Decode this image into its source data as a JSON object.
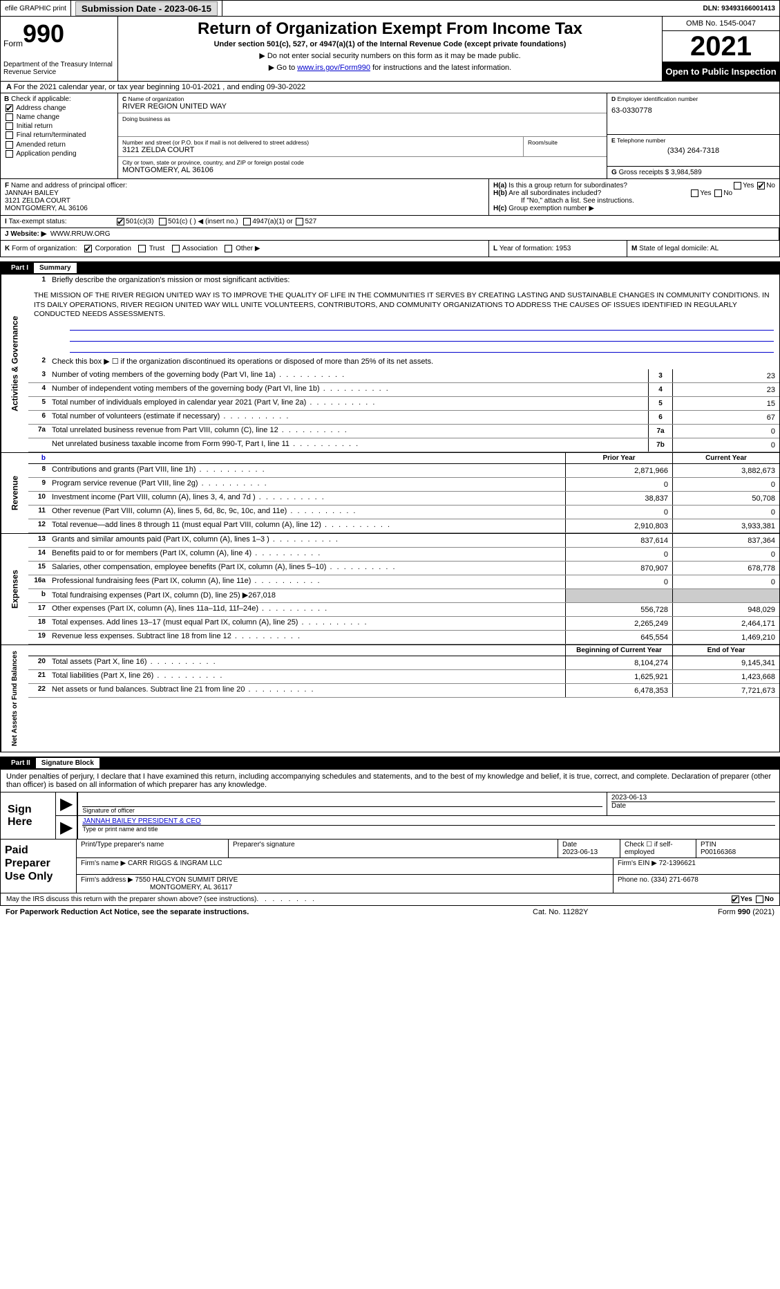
{
  "top": {
    "efile": "efile GRAPHIC print",
    "submission": "Submission Date - 2023-06-15",
    "dln": "DLN: 93493166001413"
  },
  "header": {
    "form": "Form",
    "form_num": "990",
    "dept": "Department of the Treasury Internal Revenue Service",
    "title": "Return of Organization Exempt From Income Tax",
    "sub": "Under section 501(c), 527, or 4947(a)(1) of the Internal Revenue Code (except private foundations)",
    "note1": "Do not enter social security numbers on this form as it may be made public.",
    "note2_pre": "Go to ",
    "note2_link": "www.irs.gov/Form990",
    "note2_post": " for instructions and the latest information.",
    "omb": "OMB No. 1545-0047",
    "year": "2021",
    "open": "Open to Public Inspection"
  },
  "row_a": {
    "text": "For the 2021 calendar year, or tax year beginning 10-01-2021    , and ending 09-30-2022"
  },
  "col_b": {
    "header": "Check if applicable:",
    "items": [
      "Address change",
      "Name change",
      "Initial return",
      "Final return/terminated",
      "Amended return",
      "Application pending"
    ],
    "checked": [
      true,
      false,
      false,
      false,
      false,
      false
    ]
  },
  "col_c": {
    "name_label": "Name of organization",
    "name": "RIVER REGION UNITED WAY",
    "dba_label": "Doing business as",
    "dba": "",
    "street_label": "Number and street (or P.O. box if mail is not delivered to street address)",
    "street": "3121 ZELDA COURT",
    "room_label": "Room/suite",
    "room": "",
    "city_label": "City or town, state or province, country, and ZIP or foreign postal code",
    "city": "MONTGOMERY, AL  36106"
  },
  "col_d": {
    "ein_label": "Employer identification number",
    "ein": "63-0330778",
    "phone_label": "Telephone number",
    "phone": "(334) 264-7318",
    "gross_label": "Gross receipts $",
    "gross": "3,984,589"
  },
  "col_f": {
    "label": "Name and address of principal officer:",
    "name": "JANNAH BAILEY",
    "addr1": "3121 ZELDA COURT",
    "addr2": "MONTGOMERY, AL  36106"
  },
  "col_h": {
    "ha": "Is this a group return for subordinates?",
    "hb": "Are all subordinates included?",
    "hb_note": "If \"No,\" attach a list. See instructions.",
    "hc": "Group exemption number ▶"
  },
  "status": {
    "label": "Tax-exempt status:",
    "opt1": "501(c)(3)",
    "opt2": "501(c) (  ) ◀ (insert no.)",
    "opt3": "4947(a)(1) or",
    "opt4": "527"
  },
  "website": {
    "label": "Website: ▶",
    "val": "WWW.RRUW.ORG"
  },
  "row_k": {
    "label": "Form of organization:",
    "opts": [
      "Corporation",
      "Trust",
      "Association",
      "Other ▶"
    ],
    "year_label": "Year of formation:",
    "year": "1953",
    "state_label": "State of legal domicile:",
    "state": "AL"
  },
  "part1": {
    "header_num": "Part I",
    "header_title": "Summary",
    "mission_label": "Briefly describe the organization's mission or most significant activities:",
    "mission": "THE MISSION OF THE RIVER REGION UNITED WAY IS TO IMPROVE THE QUALITY OF LIFE IN THE COMMUNITIES IT SERVES BY CREATING LASTING AND SUSTAINABLE CHANGES IN COMMUNITY CONDITIONS. IN ITS DAILY OPERATIONS, RIVER REGION UNITED WAY WILL UNITE VOLUNTEERS, CONTRIBUTORS, AND COMMUNITY ORGANIZATIONS TO ADDRESS THE CAUSES OF ISSUES IDENTIFIED IN REGULARLY CONDUCTED NEEDS ASSESSMENTS.",
    "line2": "Check this box ▶ ☐  if the organization discontinued its operations or disposed of more than 25% of its net assets."
  },
  "governance": {
    "side": "Activities & Governance",
    "lines": [
      {
        "n": "3",
        "d": "Number of voting members of the governing body (Part VI, line 1a)",
        "b": "3",
        "v": "23"
      },
      {
        "n": "4",
        "d": "Number of independent voting members of the governing body (Part VI, line 1b)",
        "b": "4",
        "v": "23"
      },
      {
        "n": "5",
        "d": "Total number of individuals employed in calendar year 2021 (Part V, line 2a)",
        "b": "5",
        "v": "15"
      },
      {
        "n": "6",
        "d": "Total number of volunteers (estimate if necessary)",
        "b": "6",
        "v": "67"
      },
      {
        "n": "7a",
        "d": "Total unrelated business revenue from Part VIII, column (C), line 12",
        "b": "7a",
        "v": "0"
      },
      {
        "n": "",
        "d": "Net unrelated business taxable income from Form 990-T, Part I, line 11",
        "b": "7b",
        "v": "0"
      }
    ]
  },
  "revenue": {
    "side": "Revenue",
    "prior_h": "Prior Year",
    "curr_h": "Current Year",
    "lines": [
      {
        "n": "8",
        "d": "Contributions and grants (Part VIII, line 1h)",
        "p": "2,871,966",
        "c": "3,882,673"
      },
      {
        "n": "9",
        "d": "Program service revenue (Part VIII, line 2g)",
        "p": "0",
        "c": "0"
      },
      {
        "n": "10",
        "d": "Investment income (Part VIII, column (A), lines 3, 4, and 7d )",
        "p": "38,837",
        "c": "50,708"
      },
      {
        "n": "11",
        "d": "Other revenue (Part VIII, column (A), lines 5, 6d, 8c, 9c, 10c, and 11e)",
        "p": "0",
        "c": "0"
      },
      {
        "n": "12",
        "d": "Total revenue—add lines 8 through 11 (must equal Part VIII, column (A), line 12)",
        "p": "2,910,803",
        "c": "3,933,381"
      }
    ]
  },
  "expenses": {
    "side": "Expenses",
    "lines": [
      {
        "n": "13",
        "d": "Grants and similar amounts paid (Part IX, column (A), lines 1–3 )",
        "p": "837,614",
        "c": "837,364"
      },
      {
        "n": "14",
        "d": "Benefits paid to or for members (Part IX, column (A), line 4)",
        "p": "0",
        "c": "0"
      },
      {
        "n": "15",
        "d": "Salaries, other compensation, employee benefits (Part IX, column (A), lines 5–10)",
        "p": "870,907",
        "c": "678,778"
      },
      {
        "n": "16a",
        "d": "Professional fundraising fees (Part IX, column (A), line 11e)",
        "p": "0",
        "c": "0"
      },
      {
        "n": "b",
        "d": "Total fundraising expenses (Part IX, column (D), line 25) ▶267,018",
        "grey": true
      },
      {
        "n": "17",
        "d": "Other expenses (Part IX, column (A), lines 11a–11d, 11f–24e)",
        "p": "556,728",
        "c": "948,029"
      },
      {
        "n": "18",
        "d": "Total expenses. Add lines 13–17 (must equal Part IX, column (A), line 25)",
        "p": "2,265,249",
        "c": "2,464,171"
      },
      {
        "n": "19",
        "d": "Revenue less expenses. Subtract line 18 from line 12",
        "p": "645,554",
        "c": "1,469,210"
      }
    ]
  },
  "netassets": {
    "side": "Net Assets or Fund Balances",
    "begin_h": "Beginning of Current Year",
    "end_h": "End of Year",
    "lines": [
      {
        "n": "20",
        "d": "Total assets (Part X, line 16)",
        "p": "8,104,274",
        "c": "9,145,341"
      },
      {
        "n": "21",
        "d": "Total liabilities (Part X, line 26)",
        "p": "1,625,921",
        "c": "1,423,668"
      },
      {
        "n": "22",
        "d": "Net assets or fund balances. Subtract line 21 from line 20",
        "p": "6,478,353",
        "c": "7,721,673"
      }
    ]
  },
  "part2": {
    "header_num": "Part II",
    "header_title": "Signature Block",
    "declaration": "Under penalties of perjury, I declare that I have examined this return, including accompanying schedules and statements, and to the best of my knowledge and belief, it is true, correct, and complete. Declaration of preparer (other than officer) is based on all information of which preparer has any knowledge."
  },
  "sign": {
    "label": "Sign Here",
    "sig_of_officer": "Signature of officer",
    "date": "2023-06-13",
    "date_label": "Date",
    "name": "JANNAH BAILEY  PRESIDENT & CEO",
    "name_label": "Type or print name and title"
  },
  "paid": {
    "label": "Paid Preparer Use Only",
    "h1": "Print/Type preparer's name",
    "h2": "Preparer's signature",
    "h3": "Date",
    "date": "2023-06-13",
    "h4": "Check ☐ if self-employed",
    "h5": "PTIN",
    "ptin": "P00166368",
    "firm_label": "Firm's name    ▶",
    "firm": "CARR RIGGS & INGRAM LLC",
    "ein_label": "Firm's EIN ▶",
    "ein": "72-1396621",
    "addr_label": "Firm's address ▶",
    "addr1": "7550 HALCYON SUMMIT DRIVE",
    "addr2": "MONTGOMERY, AL  36117",
    "phone_label": "Phone no.",
    "phone": "(334) 271-6678"
  },
  "discuss": {
    "text": "May the IRS discuss this return with the preparer shown above? (see instructions)",
    "yes": "Yes",
    "no": "No"
  },
  "footer": {
    "left": "For Paperwork Reduction Act Notice, see the separate instructions.",
    "mid": "Cat. No. 11282Y",
    "right": "Form 990 (2021)"
  }
}
